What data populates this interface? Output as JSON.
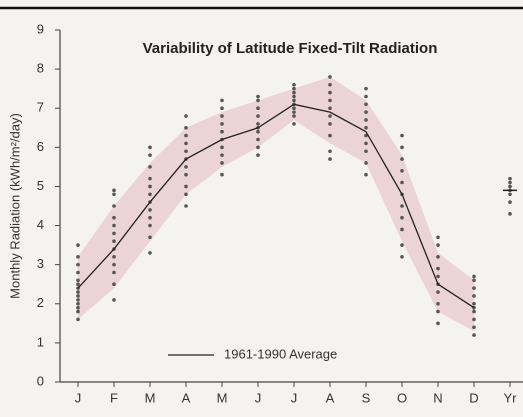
{
  "chart_data": {
    "type": "line",
    "title": "Variability of Latitude Fixed-Tilt Radiation",
    "y_label": "Monthly Radiation (kWh/m²/day)",
    "categories": [
      "J",
      "F",
      "M",
      "A",
      "M",
      "J",
      "J",
      "A",
      "S",
      "O",
      "N",
      "D",
      "Yr"
    ],
    "series": [
      {
        "name": "1961-1990 Average",
        "color": "#222222",
        "values": [
          2.4,
          3.4,
          4.6,
          5.7,
          6.2,
          6.5,
          7.1,
          6.9,
          6.4,
          4.8,
          2.5,
          1.9,
          null
        ]
      }
    ],
    "band": {
      "color": "#ecd3d6",
      "lower": [
        1.6,
        2.4,
        3.6,
        4.8,
        5.5,
        6.0,
        6.7,
        6.1,
        5.6,
        3.6,
        1.8,
        1.3,
        null
      ],
      "upper": [
        3.2,
        4.5,
        5.6,
        6.5,
        6.9,
        7.2,
        7.5,
        7.8,
        7.2,
        5.8,
        3.3,
        2.6,
        null
      ]
    },
    "points": [
      [
        1.6,
        1.8,
        1.9,
        2.0,
        2.1,
        2.2,
        2.3,
        2.4,
        2.5,
        2.6,
        2.8,
        3.0,
        3.2,
        3.5
      ],
      [
        2.1,
        2.5,
        2.8,
        3.0,
        3.2,
        3.4,
        3.6,
        3.8,
        4.0,
        4.2,
        4.5,
        4.8,
        4.9
      ],
      [
        3.3,
        3.7,
        4.0,
        4.2,
        4.4,
        4.6,
        4.8,
        5.0,
        5.2,
        5.5,
        5.8,
        6.0
      ],
      [
        4.5,
        4.8,
        5.0,
        5.3,
        5.5,
        5.7,
        5.9,
        6.1,
        6.3,
        6.5,
        6.8
      ],
      [
        5.3,
        5.6,
        5.8,
        6.0,
        6.2,
        6.4,
        6.6,
        6.8,
        7.0,
        7.2
      ],
      [
        5.8,
        6.0,
        6.2,
        6.4,
        6.5,
        6.6,
        6.8,
        7.0,
        7.2,
        7.3
      ],
      [
        6.6,
        6.8,
        6.9,
        7.0,
        7.1,
        7.2,
        7.3,
        7.4,
        7.5,
        7.6
      ],
      [
        5.7,
        5.9,
        6.3,
        6.6,
        6.8,
        7.0,
        7.2,
        7.4,
        7.6,
        7.8
      ],
      [
        5.3,
        5.6,
        5.9,
        6.1,
        6.3,
        6.5,
        6.7,
        6.9,
        7.1,
        7.3,
        7.5
      ],
      [
        3.2,
        3.5,
        3.9,
        4.2,
        4.5,
        4.8,
        5.1,
        5.4,
        5.7,
        6.0,
        6.3
      ],
      [
        1.5,
        1.8,
        2.0,
        2.3,
        2.5,
        2.7,
        2.9,
        3.2,
        3.5,
        3.7
      ],
      [
        1.2,
        1.4,
        1.6,
        1.8,
        1.9,
        2.0,
        2.2,
        2.4,
        2.6,
        2.7
      ],
      [
        4.3,
        4.6,
        4.8,
        4.9,
        5.0,
        5.1,
        5.2
      ]
    ],
    "points_color": "#555555",
    "annual_mean": 4.9,
    "ylim": [
      0,
      9
    ],
    "yticks": [
      0,
      1,
      2,
      3,
      4,
      5,
      6,
      7,
      8,
      9
    ]
  }
}
